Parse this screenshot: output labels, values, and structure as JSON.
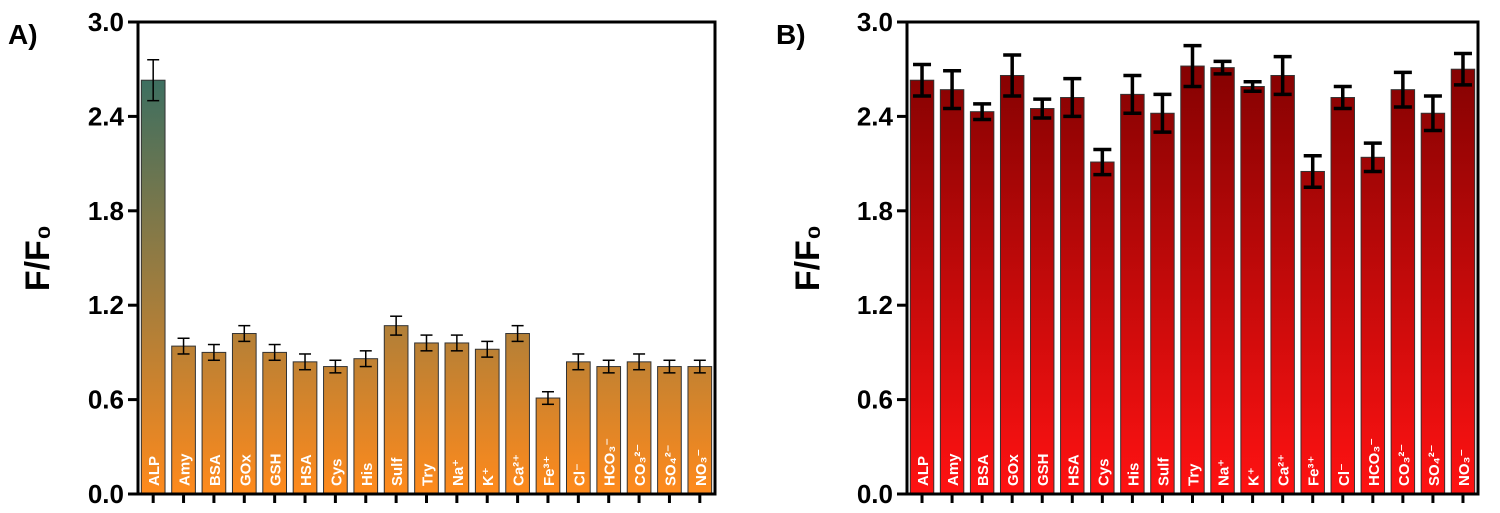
{
  "chart_data": [
    {
      "type": "bar",
      "panel_label": "A)",
      "ylabel": "F/F₀",
      "categories": [
        "ALP",
        "Amy",
        "BSA",
        "GOx",
        "GSH",
        "HSA",
        "Cys",
        "His",
        "Sulf",
        "Try",
        "Na⁺",
        "K⁺",
        "Ca²⁺",
        "Fe³⁺",
        "Cl⁻",
        "HCO₃⁻",
        "CO₃²⁻",
        "SO₄²⁻",
        "NO₃⁻"
      ],
      "values": [
        2.63,
        0.94,
        0.9,
        1.02,
        0.9,
        0.84,
        0.81,
        0.86,
        1.07,
        0.96,
        0.96,
        0.92,
        1.02,
        0.61,
        0.84,
        0.81,
        0.84,
        0.81,
        0.81
      ],
      "errors": [
        0.13,
        0.05,
        0.05,
        0.05,
        0.05,
        0.05,
        0.04,
        0.05,
        0.06,
        0.05,
        0.05,
        0.05,
        0.05,
        0.04,
        0.05,
        0.04,
        0.05,
        0.04,
        0.04
      ],
      "gradient": [
        "#226b6a",
        "#ff8a1c"
      ],
      "ylim": [
        0,
        3.0
      ],
      "yticks": [
        {
          "value": 0,
          "label": "0.0"
        },
        0.6,
        1.2,
        1.8,
        2.4,
        {
          "value": 3,
          "label": "3.0"
        }
      ]
    },
    {
      "type": "bar",
      "panel_label": "B)",
      "ylabel": "F/F₀",
      "categories": [
        "ALP",
        "Amy",
        "BSA",
        "GOx",
        "GSH",
        "HSA",
        "Cys",
        "His",
        "Sulf",
        "Try",
        "Na⁺",
        "K⁺",
        "Ca²⁺",
        "Fe³⁺",
        "Cl⁻",
        "HCO₃⁻",
        "CO₃²⁻",
        "SO₄²⁻",
        "NO₃⁻"
      ],
      "values": [
        2.63,
        2.57,
        2.43,
        2.66,
        2.45,
        2.52,
        2.11,
        2.54,
        2.42,
        2.72,
        2.71,
        2.59,
        2.66,
        2.05,
        2.52,
        2.14,
        2.57,
        2.42,
        2.7
      ],
      "errors": [
        0.1,
        0.12,
        0.05,
        0.13,
        0.06,
        0.12,
        0.08,
        0.12,
        0.12,
        0.13,
        0.04,
        0.03,
        0.12,
        0.1,
        0.07,
        0.09,
        0.11,
        0.11,
        0.1
      ],
      "gradient": [
        "#780000",
        "#ff1212"
      ],
      "ylim": [
        0,
        3.0
      ],
      "yticks": [
        {
          "value": 0,
          "label": "0.0"
        },
        0.6,
        1.2,
        1.8,
        2.4,
        {
          "value": 3,
          "label": "3.0"
        }
      ]
    }
  ]
}
